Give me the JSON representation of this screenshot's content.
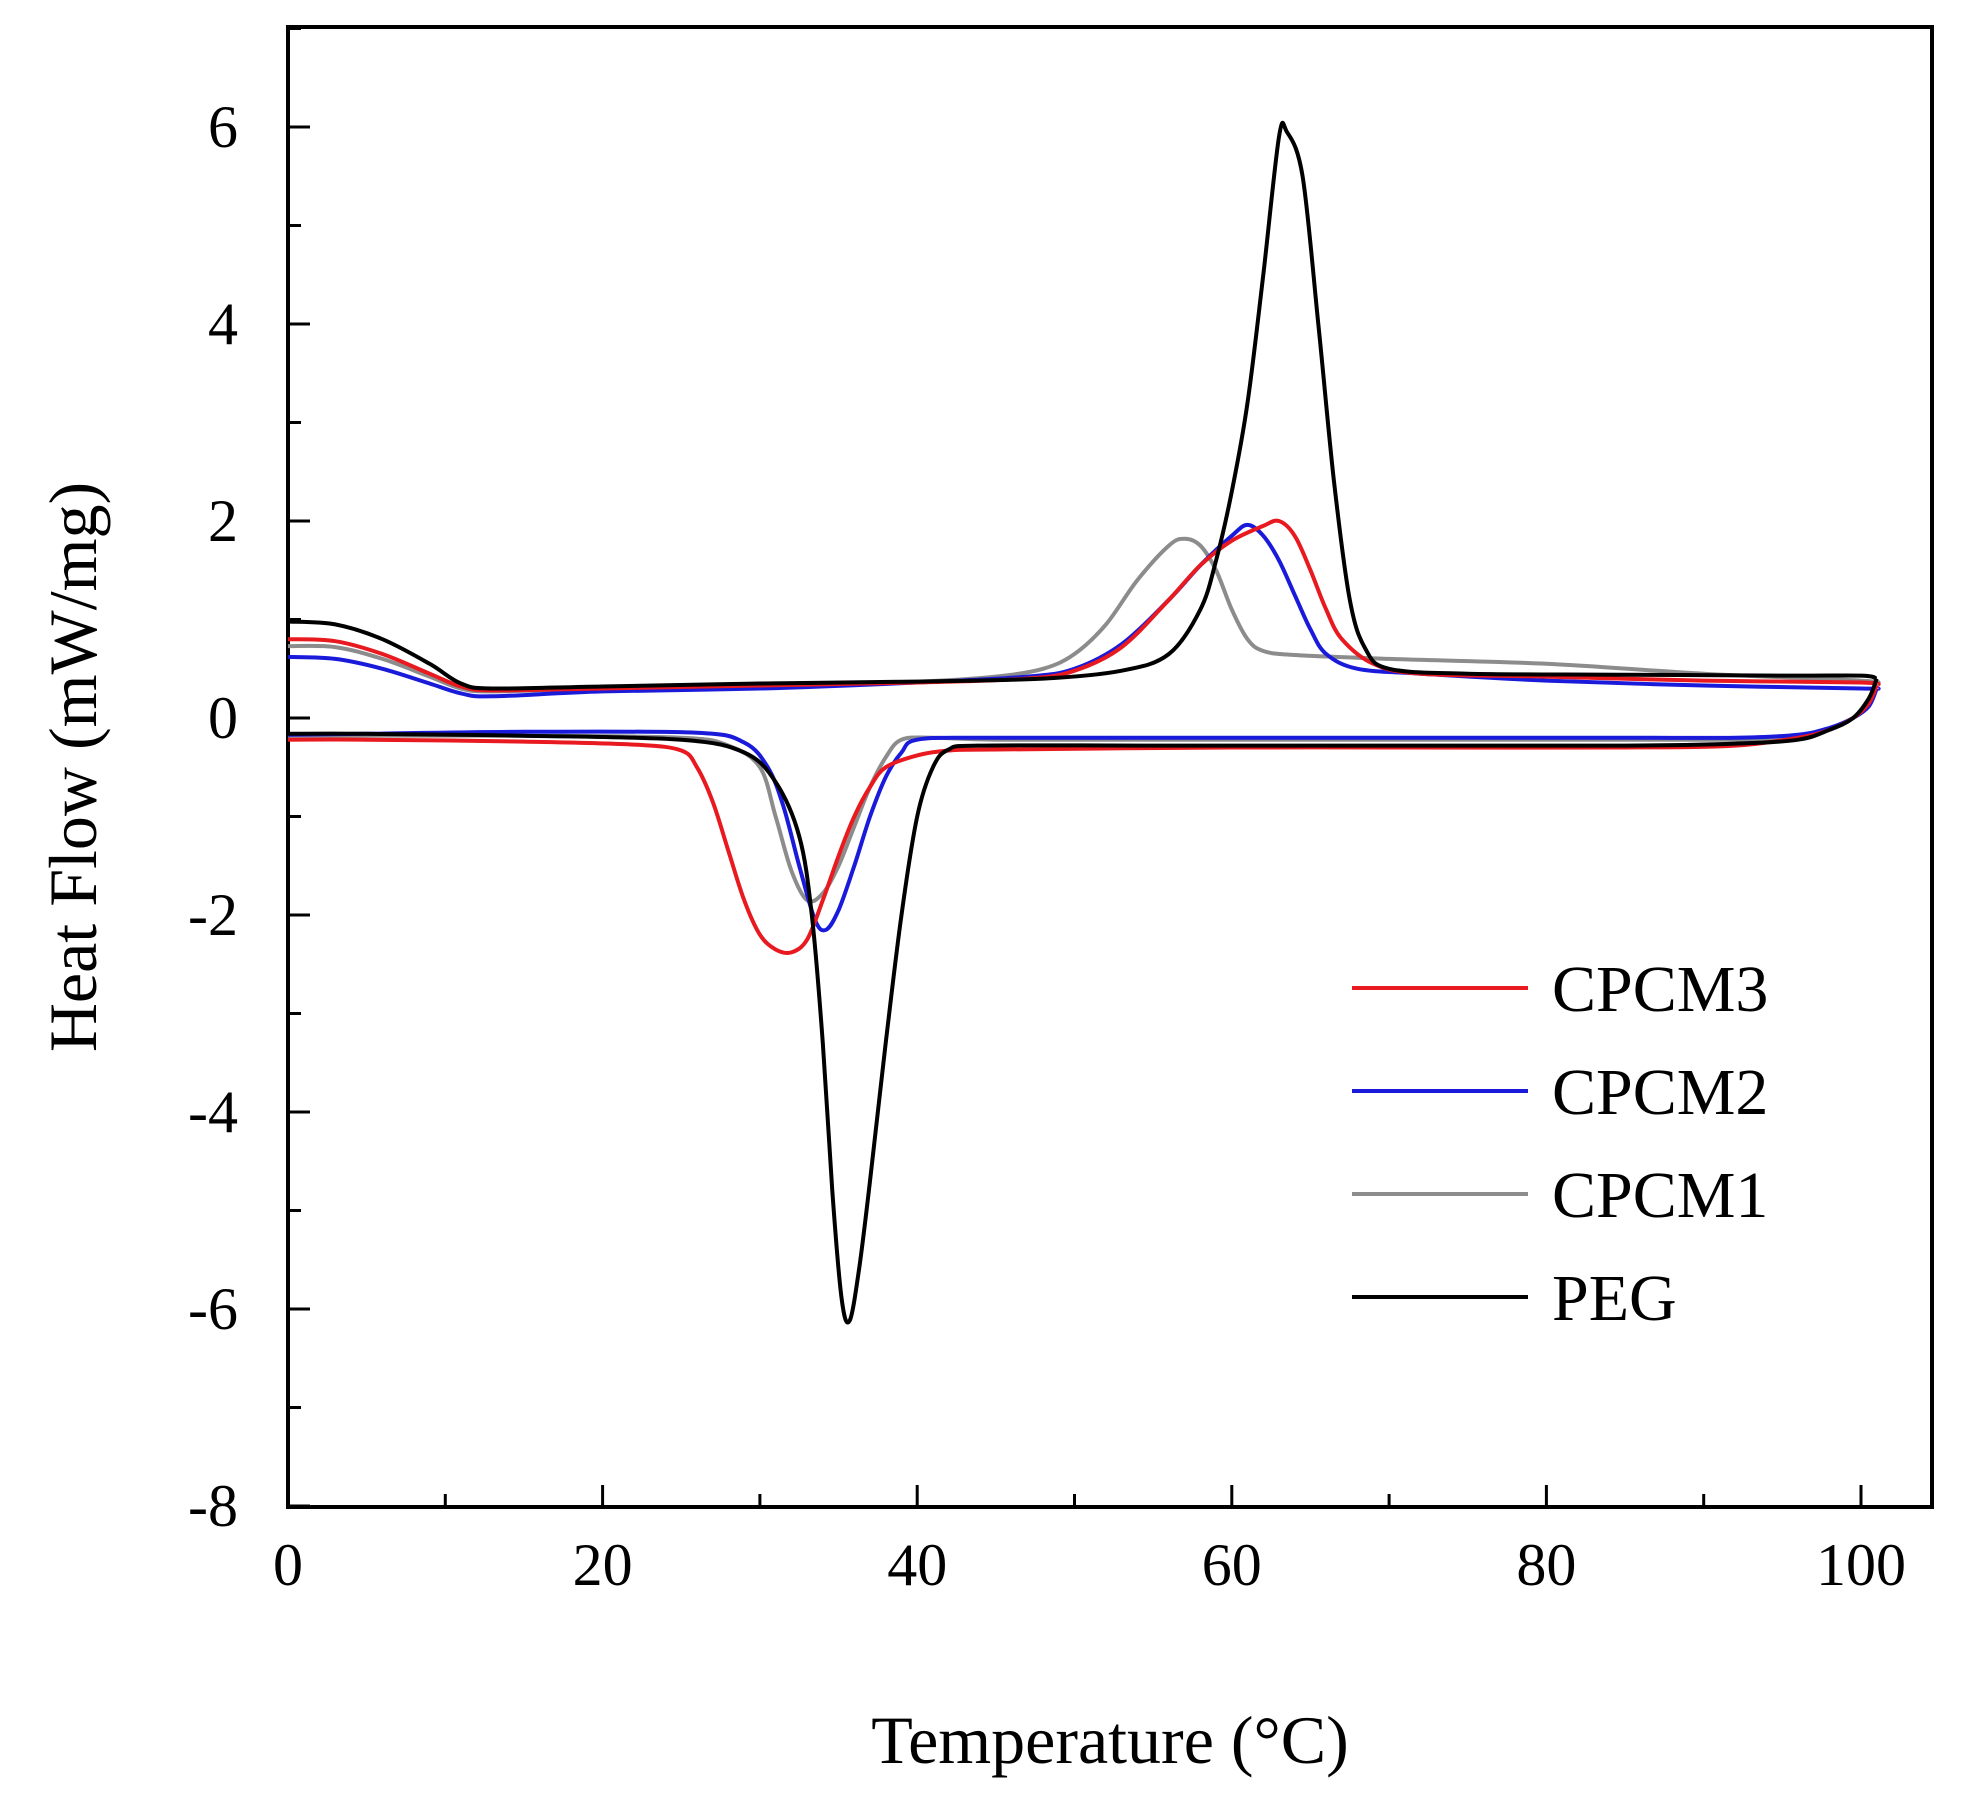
{
  "chart_data": {
    "type": "line",
    "title": "",
    "xlabel": "Temperature (°C)",
    "ylabel": "Heat Flow (mW/mg)",
    "xlim": [
      0,
      104.5
    ],
    "ylim": [
      -8,
      7
    ],
    "xticks": [
      0,
      20,
      40,
      60,
      80,
      100
    ],
    "yticks": [
      -8,
      -6,
      -4,
      -2,
      0,
      2,
      4,
      6
    ],
    "xtick_labels": [
      "0",
      "20",
      "40",
      "60",
      "80",
      "100"
    ],
    "ytick_labels": [
      "-8",
      "-6",
      "-4",
      "-2",
      "0",
      "2",
      "4",
      "6"
    ],
    "grid": false,
    "legend_position": "bottom-right",
    "series": [
      {
        "name": "CPCM3",
        "color": "#e8191f",
        "heating": [
          [
            0,
            0.8
          ],
          [
            3,
            0.78
          ],
          [
            6,
            0.65
          ],
          [
            9,
            0.45
          ],
          [
            11,
            0.32
          ],
          [
            13,
            0.28
          ],
          [
            20,
            0.3
          ],
          [
            30,
            0.33
          ],
          [
            40,
            0.36
          ],
          [
            47,
            0.4
          ],
          [
            50,
            0.48
          ],
          [
            53,
            0.72
          ],
          [
            56,
            1.2
          ],
          [
            58,
            1.55
          ],
          [
            60,
            1.8
          ],
          [
            62,
            1.95
          ],
          [
            63,
            2.0
          ],
          [
            64,
            1.85
          ],
          [
            65,
            1.5
          ],
          [
            66,
            1.1
          ],
          [
            67,
            0.8
          ],
          [
            69,
            0.55
          ],
          [
            72,
            0.45
          ],
          [
            80,
            0.42
          ],
          [
            90,
            0.38
          ],
          [
            100,
            0.36
          ],
          [
            101,
            0.33
          ]
        ],
        "cooling": [
          [
            101,
            0.33
          ],
          [
            100.5,
            0.15
          ],
          [
            99.5,
            0.0
          ],
          [
            98,
            -0.12
          ],
          [
            96,
            -0.2
          ],
          [
            92,
            -0.28
          ],
          [
            85,
            -0.3
          ],
          [
            70,
            -0.3
          ],
          [
            60,
            -0.3
          ],
          [
            45,
            -0.32
          ],
          [
            42,
            -0.33
          ],
          [
            40,
            -0.38
          ],
          [
            38,
            -0.5
          ],
          [
            37,
            -0.7
          ],
          [
            36,
            -1.0
          ],
          [
            35,
            -1.4
          ],
          [
            34,
            -1.85
          ],
          [
            33,
            -2.25
          ],
          [
            32,
            -2.38
          ],
          [
            31,
            -2.35
          ],
          [
            30,
            -2.2
          ],
          [
            29,
            -1.85
          ],
          [
            28,
            -1.35
          ],
          [
            27,
            -0.85
          ],
          [
            26,
            -0.5
          ],
          [
            25,
            -0.33
          ],
          [
            22,
            -0.27
          ],
          [
            15,
            -0.24
          ],
          [
            5,
            -0.22
          ],
          [
            0,
            -0.22
          ]
        ]
      },
      {
        "name": "CPCM2",
        "color": "#1a1adb",
        "heating": [
          [
            0,
            0.62
          ],
          [
            3,
            0.6
          ],
          [
            6,
            0.5
          ],
          [
            9,
            0.35
          ],
          [
            11,
            0.25
          ],
          [
            13,
            0.22
          ],
          [
            20,
            0.27
          ],
          [
            30,
            0.3
          ],
          [
            40,
            0.36
          ],
          [
            47,
            0.42
          ],
          [
            50,
            0.5
          ],
          [
            53,
            0.75
          ],
          [
            56,
            1.2
          ],
          [
            58,
            1.55
          ],
          [
            60,
            1.85
          ],
          [
            61,
            1.96
          ],
          [
            62,
            1.85
          ],
          [
            63,
            1.6
          ],
          [
            64,
            1.25
          ],
          [
            65,
            0.9
          ],
          [
            66,
            0.65
          ],
          [
            68,
            0.5
          ],
          [
            72,
            0.45
          ],
          [
            80,
            0.38
          ],
          [
            90,
            0.33
          ],
          [
            100,
            0.3
          ],
          [
            101,
            0.3
          ]
        ],
        "cooling": [
          [
            101,
            0.3
          ],
          [
            100.5,
            0.12
          ],
          [
            99.5,
            0.0
          ],
          [
            98,
            -0.1
          ],
          [
            96,
            -0.17
          ],
          [
            92,
            -0.2
          ],
          [
            85,
            -0.2
          ],
          [
            70,
            -0.2
          ],
          [
            55,
            -0.2
          ],
          [
            44,
            -0.2
          ],
          [
            40,
            -0.22
          ],
          [
            39,
            -0.35
          ],
          [
            38,
            -0.6
          ],
          [
            37,
            -1.0
          ],
          [
            36,
            -1.5
          ],
          [
            35,
            -1.95
          ],
          [
            34.2,
            -2.15
          ],
          [
            33.5,
            -2.05
          ],
          [
            32.5,
            -1.5
          ],
          [
            31.5,
            -0.9
          ],
          [
            30.5,
            -0.5
          ],
          [
            29,
            -0.25
          ],
          [
            26,
            -0.15
          ],
          [
            15,
            -0.14
          ],
          [
            5,
            -0.16
          ],
          [
            0,
            -0.17
          ]
        ]
      },
      {
        "name": "CPCM1",
        "color": "#8c8c8c",
        "heating": [
          [
            0,
            0.73
          ],
          [
            3,
            0.72
          ],
          [
            6,
            0.6
          ],
          [
            9,
            0.42
          ],
          [
            11,
            0.3
          ],
          [
            13,
            0.27
          ],
          [
            20,
            0.3
          ],
          [
            30,
            0.33
          ],
          [
            40,
            0.37
          ],
          [
            45,
            0.42
          ],
          [
            48,
            0.5
          ],
          [
            50,
            0.65
          ],
          [
            52,
            0.95
          ],
          [
            54,
            1.4
          ],
          [
            56,
            1.75
          ],
          [
            57,
            1.82
          ],
          [
            58,
            1.75
          ],
          [
            59,
            1.5
          ],
          [
            60,
            1.1
          ],
          [
            61,
            0.8
          ],
          [
            62,
            0.68
          ],
          [
            64,
            0.64
          ],
          [
            70,
            0.6
          ],
          [
            80,
            0.55
          ],
          [
            90,
            0.45
          ],
          [
            100,
            0.38
          ],
          [
            101,
            0.35
          ]
        ],
        "cooling": [
          [
            101,
            0.35
          ],
          [
            100.5,
            0.15
          ],
          [
            99.5,
            0.0
          ],
          [
            98,
            -0.12
          ],
          [
            96,
            -0.2
          ],
          [
            92,
            -0.22
          ],
          [
            85,
            -0.22
          ],
          [
            70,
            -0.22
          ],
          [
            55,
            -0.22
          ],
          [
            45,
            -0.22
          ],
          [
            41,
            -0.2
          ],
          [
            39,
            -0.22
          ],
          [
            38,
            -0.4
          ],
          [
            37,
            -0.7
          ],
          [
            36,
            -1.1
          ],
          [
            35,
            -1.5
          ],
          [
            34,
            -1.78
          ],
          [
            33,
            -1.85
          ],
          [
            32,
            -1.55
          ],
          [
            31,
            -1.0
          ],
          [
            30,
            -0.5
          ],
          [
            28,
            -0.28
          ],
          [
            25,
            -0.2
          ],
          [
            15,
            -0.18
          ],
          [
            5,
            -0.18
          ],
          [
            0,
            -0.18
          ]
        ]
      },
      {
        "name": "PEG",
        "color": "#000000",
        "heating": [
          [
            0,
            0.98
          ],
          [
            3,
            0.95
          ],
          [
            6,
            0.8
          ],
          [
            9,
            0.55
          ],
          [
            11,
            0.35
          ],
          [
            13,
            0.3
          ],
          [
            20,
            0.32
          ],
          [
            30,
            0.35
          ],
          [
            40,
            0.37
          ],
          [
            48,
            0.4
          ],
          [
            53,
            0.48
          ],
          [
            56,
            0.65
          ],
          [
            58,
            1.1
          ],
          [
            59,
            1.6
          ],
          [
            60,
            2.3
          ],
          [
            61,
            3.2
          ],
          [
            62,
            4.5
          ],
          [
            63,
            5.9
          ],
          [
            63.5,
            5.95
          ],
          [
            64.5,
            5.5
          ],
          [
            65.5,
            4.0
          ],
          [
            66.5,
            2.4
          ],
          [
            67.5,
            1.2
          ],
          [
            68.5,
            0.7
          ],
          [
            70,
            0.5
          ],
          [
            75,
            0.45
          ],
          [
            85,
            0.44
          ],
          [
            95,
            0.43
          ],
          [
            100,
            0.43
          ],
          [
            101,
            0.4
          ]
        ],
        "cooling": [
          [
            101,
            0.4
          ],
          [
            100.5,
            0.2
          ],
          [
            99.5,
            0.0
          ],
          [
            98,
            -0.12
          ],
          [
            96,
            -0.22
          ],
          [
            92,
            -0.26
          ],
          [
            85,
            -0.28
          ],
          [
            70,
            -0.28
          ],
          [
            55,
            -0.28
          ],
          [
            44,
            -0.28
          ],
          [
            42,
            -0.32
          ],
          [
            41,
            -0.5
          ],
          [
            40,
            -1.0
          ],
          [
            39,
            -2.0
          ],
          [
            38,
            -3.3
          ],
          [
            37,
            -4.7
          ],
          [
            36.3,
            -5.6
          ],
          [
            35.7,
            -6.12
          ],
          [
            35.2,
            -5.9
          ],
          [
            34.6,
            -4.8
          ],
          [
            34,
            -3.3
          ],
          [
            33.3,
            -2.0
          ],
          [
            32.5,
            -1.2
          ],
          [
            31,
            -0.65
          ],
          [
            29,
            -0.35
          ],
          [
            25,
            -0.22
          ],
          [
            15,
            -0.18
          ],
          [
            5,
            -0.16
          ],
          [
            0,
            -0.16
          ]
        ]
      }
    ]
  }
}
